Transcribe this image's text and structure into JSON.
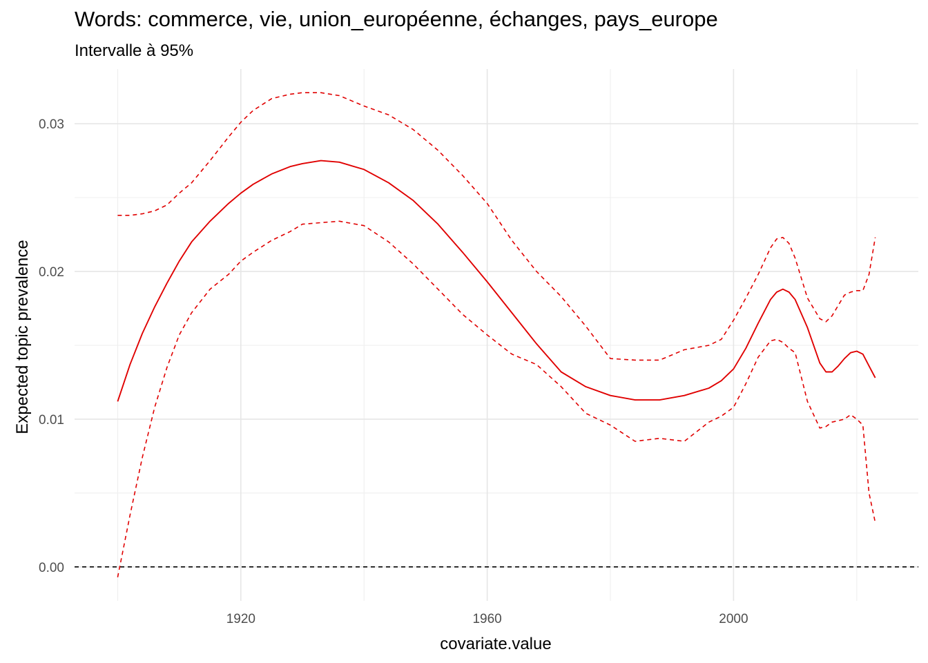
{
  "chart_data": {
    "type": "line",
    "title": "Words: commerce, vie, union_européenne, échanges, pays_europe",
    "subtitle": "Intervalle à 95%",
    "xlabel": "covariate.value",
    "ylabel": "Expected topic prevalence",
    "xlim": [
      1893,
      2030
    ],
    "ylim": [
      -0.0023,
      0.0337
    ],
    "x_ticks": [
      1920,
      1960,
      2000
    ],
    "x_tick_labels": [
      "1920",
      "1960",
      "2000"
    ],
    "y_ticks": [
      0.0,
      0.01,
      0.02,
      0.03
    ],
    "y_tick_labels": [
      "0.00",
      "0.01",
      "0.02",
      "0.03"
    ],
    "grid": true,
    "reference_line": {
      "y": 0,
      "style": "dashed",
      "color": "#000000"
    },
    "color": "#e00000",
    "x": [
      1900,
      1902,
      1904,
      1906,
      1908,
      1910,
      1912,
      1915,
      1918,
      1920,
      1922,
      1925,
      1928,
      1930,
      1933,
      1936,
      1940,
      1944,
      1948,
      1952,
      1956,
      1960,
      1964,
      1968,
      1972,
      1976,
      1980,
      1984,
      1988,
      1992,
      1996,
      1998,
      2000,
      2002,
      2004,
      2006,
      2007,
      2008,
      2009,
      2010,
      2012,
      2014,
      2015,
      2016,
      2017,
      2018,
      2019,
      2020,
      2021,
      2022,
      2023
    ],
    "series": [
      {
        "role": "estimate",
        "style": "solid",
        "values": [
          0.0112,
          0.0137,
          0.0158,
          0.0176,
          0.0192,
          0.0207,
          0.022,
          0.0234,
          0.0246,
          0.0253,
          0.0259,
          0.0266,
          0.0271,
          0.0273,
          0.0275,
          0.0274,
          0.0269,
          0.026,
          0.0248,
          0.0232,
          0.0213,
          0.0193,
          0.0172,
          0.0151,
          0.0132,
          0.0122,
          0.0116,
          0.0113,
          0.0113,
          0.0116,
          0.0121,
          0.0126,
          0.0134,
          0.0148,
          0.0165,
          0.0181,
          0.0186,
          0.0188,
          0.0186,
          0.0181,
          0.0162,
          0.0138,
          0.0132,
          0.0132,
          0.0136,
          0.0141,
          0.0145,
          0.0146,
          0.0144,
          0.0136,
          0.0128
        ]
      },
      {
        "role": "upper 95% bound",
        "style": "dashed",
        "values": [
          0.0238,
          0.0238,
          0.0239,
          0.0241,
          0.0245,
          0.0253,
          0.026,
          0.0275,
          0.0291,
          0.0301,
          0.0309,
          0.0317,
          0.032,
          0.0321,
          0.0321,
          0.0319,
          0.0312,
          0.0306,
          0.0296,
          0.0282,
          0.0265,
          0.0246,
          0.0221,
          0.02,
          0.0183,
          0.0163,
          0.0141,
          0.014,
          0.014,
          0.0147,
          0.015,
          0.0154,
          0.0167,
          0.0182,
          0.0198,
          0.0216,
          0.0222,
          0.0223,
          0.0219,
          0.0209,
          0.0182,
          0.0168,
          0.0166,
          0.017,
          0.0177,
          0.0184,
          0.0186,
          0.0187,
          0.0187,
          0.0198,
          0.0223
        ]
      },
      {
        "role": "lower 95% bound",
        "style": "dashed",
        "values": [
          -0.0007,
          0.0035,
          0.0074,
          0.0108,
          0.0135,
          0.0157,
          0.0172,
          0.0188,
          0.0198,
          0.0207,
          0.0213,
          0.0221,
          0.0227,
          0.0232,
          0.0233,
          0.0234,
          0.0231,
          0.022,
          0.0205,
          0.0188,
          0.0171,
          0.0157,
          0.0144,
          0.0137,
          0.0122,
          0.0104,
          0.0096,
          0.0085,
          0.0087,
          0.0085,
          0.0098,
          0.0102,
          0.0108,
          0.0124,
          0.0142,
          0.0153,
          0.0154,
          0.0152,
          0.0148,
          0.0145,
          0.0112,
          0.0094,
          0.0095,
          0.0098,
          0.0099,
          0.01,
          0.0103,
          0.01,
          0.0096,
          0.005,
          0.003
        ]
      }
    ]
  }
}
